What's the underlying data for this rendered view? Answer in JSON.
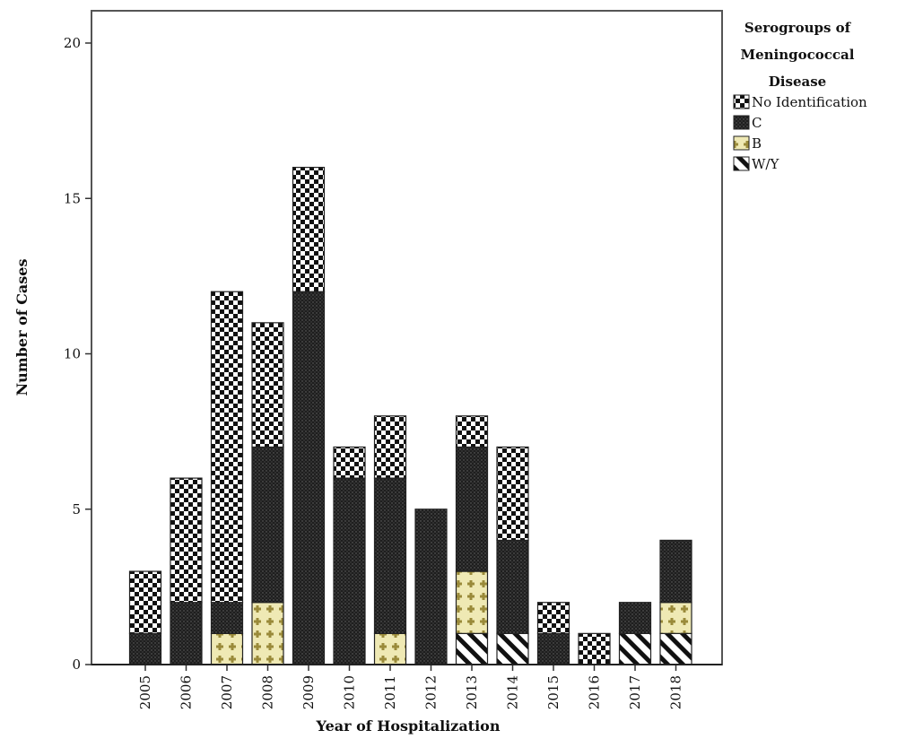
{
  "chart_data": {
    "type": "bar",
    "stacked": true,
    "title": "",
    "xlabel": "Year of Hospitalization",
    "ylabel": "Number of Cases",
    "ylim": [
      0,
      20
    ],
    "yticks": [
      0,
      5,
      10,
      15,
      20
    ],
    "grid": false,
    "legend_position": "top-right",
    "legend_title": [
      "Serogroups of",
      "Meningococcal",
      "Disease"
    ],
    "categories": [
      "2005",
      "2006",
      "2007",
      "2008",
      "2009",
      "2010",
      "2011",
      "2012",
      "2013",
      "2014",
      "2015",
      "2016",
      "2017",
      "2018"
    ],
    "series": [
      {
        "name": "W/Y",
        "pattern": "diagonal-stripes",
        "color": "#ffffff",
        "values": [
          0,
          0,
          0,
          0,
          0,
          0,
          0,
          0,
          1,
          1,
          0,
          0,
          1,
          1
        ]
      },
      {
        "name": "B",
        "pattern": "plus-crosses",
        "color": "#efe9b4",
        "values": [
          0,
          0,
          1,
          2,
          0,
          0,
          1,
          0,
          2,
          0,
          0,
          0,
          0,
          1
        ]
      },
      {
        "name": "C",
        "pattern": "dark-dots",
        "color": "#1a1a1a",
        "values": [
          1,
          2,
          1,
          5,
          12,
          6,
          5,
          5,
          4,
          3,
          1,
          0,
          1,
          2
        ]
      },
      {
        "name": "No Identification",
        "pattern": "checkerboard",
        "color": "#ffffff",
        "values": [
          2,
          4,
          10,
          4,
          4,
          1,
          2,
          0,
          1,
          3,
          1,
          1,
          0,
          0
        ]
      }
    ],
    "legend_order": [
      "No Identification",
      "C",
      "B",
      "W/Y"
    ]
  }
}
